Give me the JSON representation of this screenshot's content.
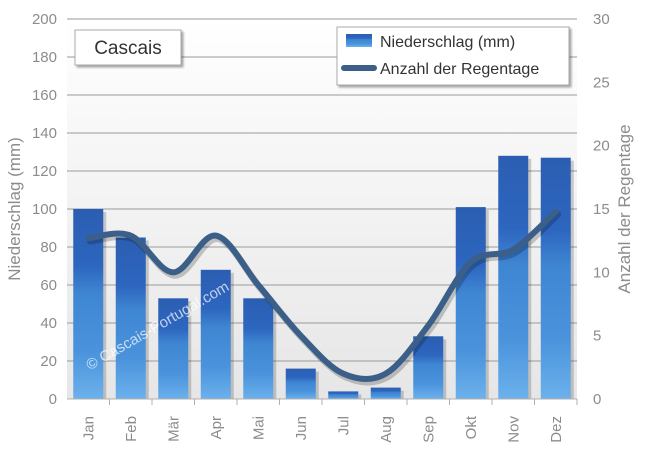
{
  "chart_data": {
    "type": "bar",
    "location": "Cascais",
    "categories": [
      "Jan",
      "Feb",
      "Mär",
      "Apr",
      "Mai",
      "Jun",
      "Jul",
      "Aug",
      "Sep",
      "Okt",
      "Nov",
      "Dez"
    ],
    "series": [
      {
        "name": "Niederschlag (mm)",
        "type": "bar",
        "axis": "left",
        "color": "#2a5fb5",
        "values": [
          100,
          85,
          53,
          68,
          53,
          16,
          4,
          6,
          33,
          101,
          128,
          127
        ]
      },
      {
        "name": "Anzahl der Regentage",
        "type": "line",
        "axis": "right",
        "color": "#3c5f8a",
        "values": [
          12.7,
          12.9,
          10.0,
          12.9,
          9.0,
          5.0,
          2.0,
          2.0,
          5.8,
          10.8,
          11.8,
          14.8
        ]
      }
    ],
    "ylabel_left": "Niederschlag (mm)",
    "ylabel_right": "Anzahl der Regentage",
    "ylim_left": [
      0,
      200
    ],
    "ylim_right": [
      0,
      30
    ],
    "yticks_left": [
      "0",
      "20",
      "40",
      "60",
      "80",
      "100",
      "120",
      "140",
      "160",
      "180",
      "200"
    ],
    "yticks_right": [
      "0",
      "5",
      "10",
      "15",
      "20",
      "25",
      "30"
    ],
    "grid": true,
    "legend_position": "top-right",
    "watermark": "© Cascais-Portugal.com"
  }
}
